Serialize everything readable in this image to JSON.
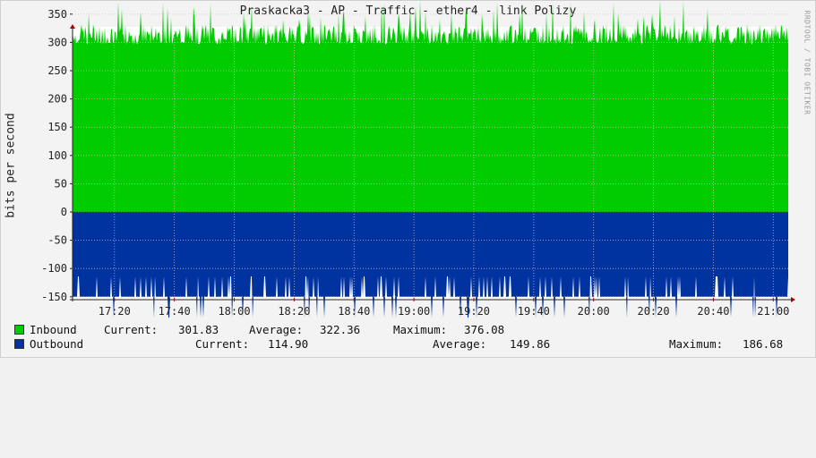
{
  "title": "Praskacka3 - AP - Traffic - ether4 - link Polizy",
  "watermark": "RRDTOOL / TOBI OETIKER",
  "colors": {
    "inbound": "#00cc00",
    "outbound": "#0033a0",
    "grid": "#e0c0c0"
  },
  "chart_data": {
    "type": "area",
    "ylabel": "bits per second",
    "ylim": [
      -190,
      380
    ],
    "yticks": [
      350,
      300,
      250,
      200,
      150,
      100,
      50,
      0,
      -50,
      -100,
      -150
    ],
    "ytick_labels": [
      "350",
      "300",
      "250",
      "200",
      "150",
      "100",
      "50",
      "0",
      "-50",
      "-100",
      "-150"
    ],
    "xlim": [
      "17:06",
      "21:05"
    ],
    "xticks": [
      "17:20",
      "17:40",
      "18:00",
      "18:20",
      "18:40",
      "19:00",
      "19:20",
      "19:40",
      "20:00",
      "20:20",
      "20:40",
      "21:00"
    ],
    "series": [
      {
        "name": "Inbound",
        "range": [
          296,
          376
        ],
        "typical": 322,
        "current": 301.83,
        "average": 322.36,
        "maximum": 376.08
      },
      {
        "name": "Outbound",
        "range": [
          -186.68,
          -114
        ],
        "typical": -150,
        "current": 114.9,
        "average": 149.86,
        "maximum": 186.68
      }
    ]
  },
  "legend": {
    "inbound": {
      "name": "Inbound",
      "current_label": "Current:",
      "current": "301.83",
      "average_label": "Average:",
      "average": "322.36",
      "maximum_label": "Maximum:",
      "maximum": "376.08"
    },
    "outbound": {
      "name": "Outbound",
      "current_label": "Current:",
      "current": "114.90",
      "average_label": "Average:",
      "average": "149.86",
      "maximum_label": "Maximum:",
      "maximum": "186.68"
    }
  }
}
